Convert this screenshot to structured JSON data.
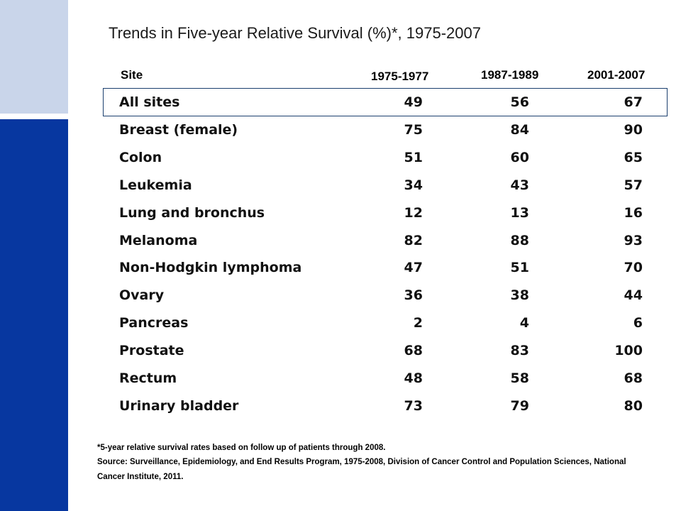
{
  "title": "Trends in Five-year Relative Survival (%)*, 1975-2007",
  "table": {
    "headers": {
      "site": "Site",
      "period1": "1975-1977",
      "period2": "1987-1989",
      "period3": "2001-2007"
    },
    "rows": [
      {
        "site": "All sites",
        "v1": "49",
        "v2": "56",
        "v3": "67"
      },
      {
        "site": "Breast (female)",
        "v1": "75",
        "v2": "84",
        "v3": "90"
      },
      {
        "site": "Colon",
        "v1": "51",
        "v2": "60",
        "v3": "65"
      },
      {
        "site": "Leukemia",
        "v1": "34",
        "v2": "43",
        "v3": "57"
      },
      {
        "site": "Lung and bronchus",
        "v1": "12",
        "v2": "13",
        "v3": "16"
      },
      {
        "site": "Melanoma",
        "v1": "82",
        "v2": "88",
        "v3": "93"
      },
      {
        "site": "Non-Hodgkin lymphoma",
        "v1": "47",
        "v2": "51",
        "v3": "70"
      },
      {
        "site": "Ovary",
        "v1": "36",
        "v2": "38",
        "v3": "44"
      },
      {
        "site": "Pancreas",
        "v1": "2",
        "v2": "4",
        "v3": "6"
      },
      {
        "site": "Prostate",
        "v1": "68",
        "v2": "83",
        "v3": "100"
      },
      {
        "site": "Rectum",
        "v1": "48",
        "v2": "58",
        "v3": "68"
      },
      {
        "site": "Urinary bladder",
        "v1": "73",
        "v2": "79",
        "v3": "80"
      }
    ]
  },
  "footnote": "*5-year relative survival rates based on follow up of patients through 2008.",
  "source": "Source: Surveillance, Epidemiology, and End Results Program, 1975-2008, Division of Cancer Control and Population Sciences, National Cancer Institute, 2011.",
  "colors": {
    "left_band_light": "#c9d5ea",
    "left_band_dark": "#0737a0",
    "highlight_border": "#1b3f6e"
  }
}
